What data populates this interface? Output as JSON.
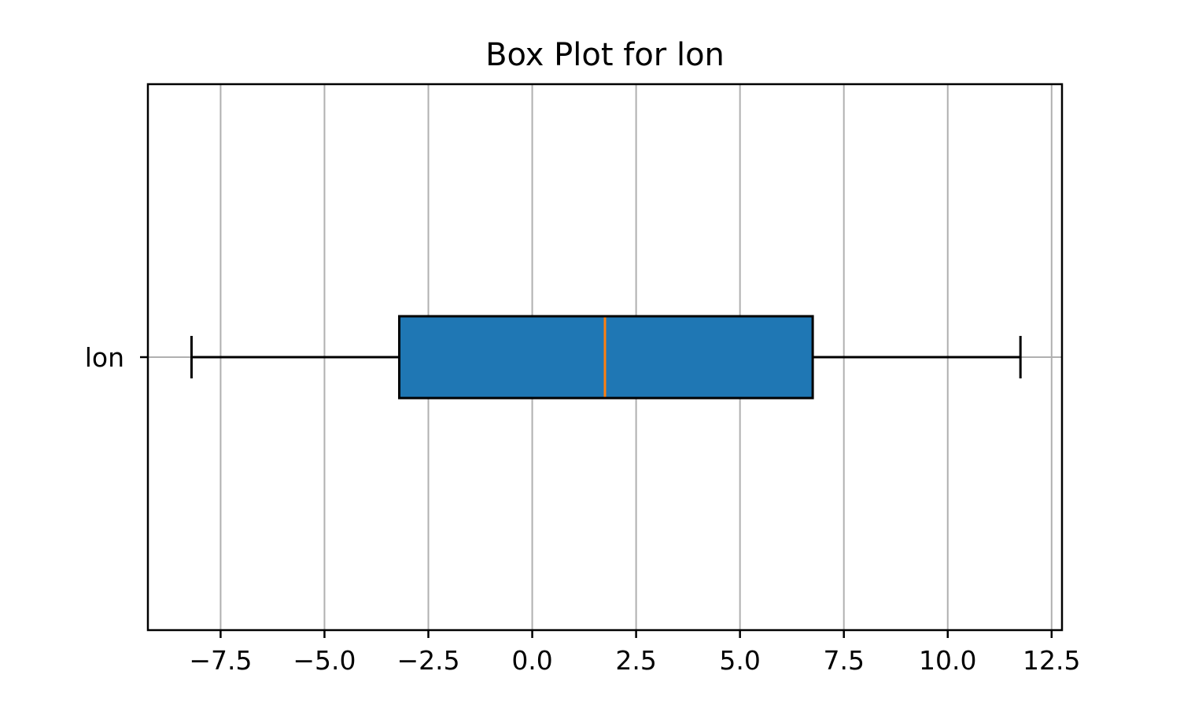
{
  "chart_data": {
    "type": "box",
    "title": "Box Plot for lon",
    "orientation": "horizontal",
    "categories": [
      "lon"
    ],
    "series": [
      {
        "name": "lon",
        "whisker_low": -8.2,
        "q1": -3.2,
        "median": 1.75,
        "q3": 6.75,
        "whisker_high": 11.75
      }
    ],
    "xlabel": "",
    "ylabel": "",
    "xlim": [
      -9.25,
      12.75
    ],
    "xticks": [
      -7.5,
      -5.0,
      -2.5,
      0.0,
      2.5,
      5.0,
      7.5,
      10.0,
      12.5
    ],
    "xtick_labels": [
      "−7.5",
      "−5.0",
      "−2.5",
      "0.0",
      "2.5",
      "5.0",
      "7.5",
      "10.0",
      "12.5"
    ],
    "grid": "x",
    "legend": "none",
    "colors": {
      "box_fill": "#1f77b4",
      "median": "#ff7f0e",
      "grid": "#b0b0b0",
      "outline": "#000000"
    }
  }
}
